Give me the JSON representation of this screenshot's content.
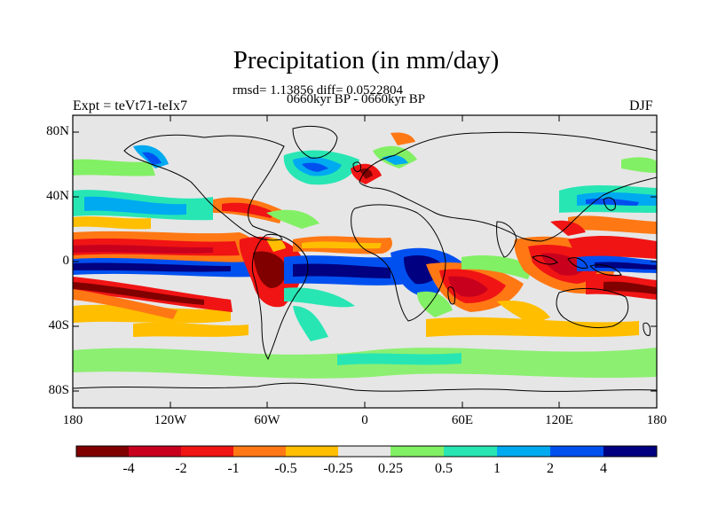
{
  "title": "Precipitation (in mm/day)",
  "stats_line": "rmsd= 1.13856 diff= 0.0522804",
  "period_line": "0660kyr BP - 0660kyr BP",
  "experiment": "Expt = teVt71-teIx7",
  "season": "DJF",
  "lat_labels": [
    "80N",
    "40N",
    "0",
    "40S",
    "80S"
  ],
  "lon_labels": [
    "180",
    "120W",
    "60W",
    "0",
    "60E",
    "120E",
    "180"
  ],
  "colorbar": {
    "labels": [
      "-4",
      "-2",
      "-1",
      "-0.5",
      "-0.25",
      "0.25",
      "0.5",
      "1",
      "2",
      "4"
    ],
    "colors": [
      "#800000",
      "#c8001e",
      "#f01414",
      "#ff7814",
      "#ffbe00",
      "#e6e6e6",
      "#82f064",
      "#28e6b4",
      "#00aaf0",
      "#0050f0",
      "#000080"
    ]
  },
  "colors": {
    "land_neutral": "#e6e6e6",
    "frame": "#000000",
    "coast": "#000000"
  }
}
